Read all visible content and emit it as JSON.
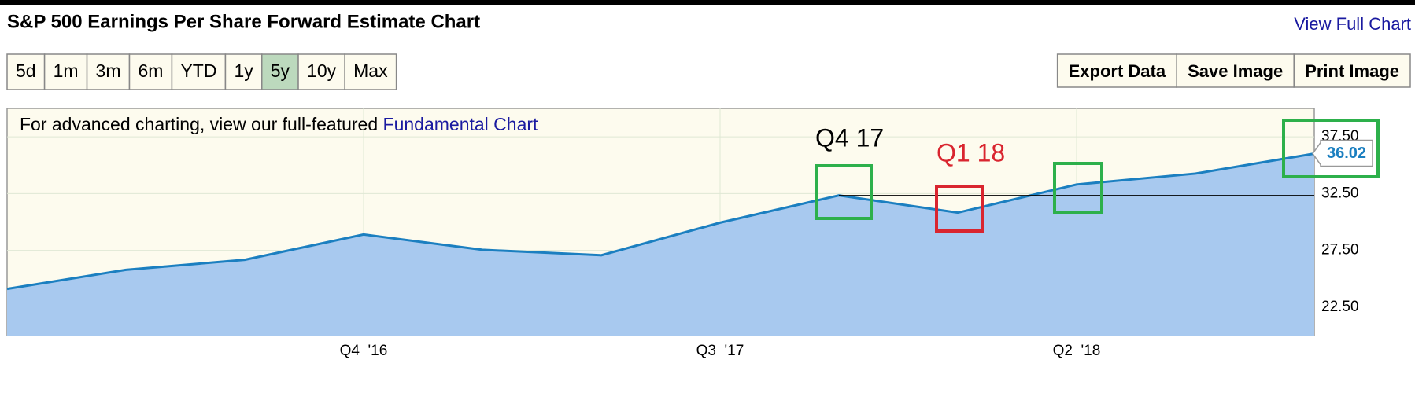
{
  "header": {
    "title": "S&P 500 Earnings Per Share Forward Estimate Chart",
    "link": "View Full Chart"
  },
  "range_buttons": [
    "5d",
    "1m",
    "3m",
    "6m",
    "YTD",
    "1y",
    "5y",
    "10y",
    "Max"
  ],
  "selected_range": "5y",
  "action_buttons": [
    "Export Data",
    "Save Image",
    "Print Image"
  ],
  "notice": {
    "text": "For advanced charting, view our full-featured ",
    "link": "Fundamental Chart"
  },
  "chart_data": {
    "type": "area",
    "categories": [
      null,
      null,
      null,
      "Q4  '16",
      null,
      null,
      "Q3  '17",
      null,
      null,
      "Q2  '18",
      null,
      null
    ],
    "series": [
      {
        "color": "#1b7fc0",
        "fill": "#a8c9ef",
        "values": [
          24.11,
          25.79,
          26.67,
          28.9,
          27.55,
          27.07,
          29.94,
          32.34,
          30.82,
          33.3,
          34.26,
          36.02
        ]
      }
    ],
    "last_value_label": "36.02",
    "ylim": [
      20,
      40
    ],
    "yticks": [
      {
        "value": 22.5,
        "label": "22.50"
      },
      {
        "value": 27.5,
        "label": "27.50"
      },
      {
        "value": 32.5,
        "label": "32.50"
      },
      {
        "value": 37.5,
        "label": "37.50"
      }
    ],
    "grid": true,
    "annotations": [
      {
        "text": "Q4 17",
        "color": "#000000"
      },
      {
        "text": "Q1 18",
        "color": "#d9252f"
      }
    ]
  }
}
